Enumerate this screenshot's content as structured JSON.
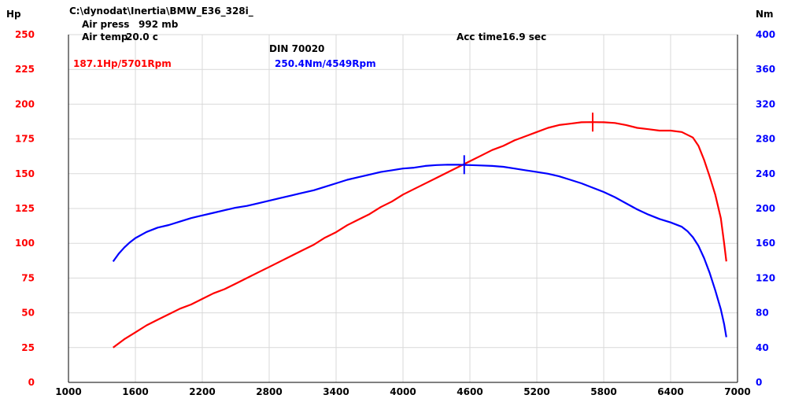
{
  "chart_data": {
    "type": "line",
    "file_path": "C:\\dynodat\\Inertia\\BMW_E36_328i_",
    "air_press_label": "Air press",
    "air_press_value": "992 mb",
    "air_temp_label": "Air temp",
    "air_temp_value": "20.0 c",
    "acc_time_label": "Acc time",
    "acc_time_value": "16.9 sec",
    "standard": "DIN 70020",
    "peak_power_label": "187.1Hp/5701Rpm",
    "peak_torque_label": "250.4Nm/4549Rpm",
    "y_left_unit": "Hp",
    "y_right_unit": "Nm",
    "xlim": [
      1000,
      7000
    ],
    "ylim_left": [
      0,
      250
    ],
    "ylim_right": [
      0,
      400
    ],
    "x_ticks": [
      1000,
      1600,
      2200,
      2800,
      3400,
      4000,
      4600,
      5200,
      5800,
      6400,
      7000
    ],
    "y_left_ticks": [
      0,
      25,
      50,
      75,
      100,
      125,
      150,
      175,
      200,
      225,
      250
    ],
    "y_right_ticks": [
      0,
      40,
      80,
      120,
      160,
      200,
      240,
      280,
      320,
      360,
      400
    ],
    "grid": true,
    "colors": {
      "power": "#ff0000",
      "torque": "#0000ff",
      "axis_left": "#ff0000",
      "axis_right": "#0000ff"
    },
    "series": [
      {
        "axis": "left",
        "color": "#ff0000",
        "peak": {
          "x": 5701,
          "y": 187.1
        },
        "x": [
          1400,
          1500,
          1600,
          1700,
          1800,
          1900,
          2000,
          2100,
          2200,
          2300,
          2400,
          2500,
          2600,
          2700,
          2800,
          2900,
          3000,
          3100,
          3200,
          3300,
          3400,
          3500,
          3600,
          3700,
          3800,
          3900,
          4000,
          4100,
          4200,
          4300,
          4400,
          4500,
          4600,
          4700,
          4800,
          4900,
          5000,
          5100,
          5200,
          5300,
          5400,
          5500,
          5600,
          5700,
          5800,
          5900,
          6000,
          6100,
          6200,
          6300,
          6400,
          6500,
          6600,
          6650,
          6700,
          6750,
          6800,
          6850,
          6880,
          6900
        ],
        "y": [
          25,
          31,
          36,
          41,
          45,
          49,
          53,
          56,
          60,
          64,
          67,
          71,
          75,
          79,
          83,
          87,
          91,
          95,
          99,
          104,
          108,
          113,
          117,
          121,
          126,
          130,
          135,
          139,
          143,
          147,
          151,
          155,
          159,
          163,
          167,
          170,
          174,
          177,
          180,
          183,
          185,
          186,
          187,
          187.1,
          187,
          186.5,
          185,
          183,
          182,
          181,
          181,
          180,
          176,
          170,
          160,
          148,
          135,
          118,
          100,
          87
        ]
      },
      {
        "axis": "right",
        "color": "#0000ff",
        "peak": {
          "x": 4549,
          "y": 250.4
        },
        "x": [
          1400,
          1450,
          1500,
          1550,
          1600,
          1700,
          1800,
          1900,
          2000,
          2100,
          2200,
          2300,
          2400,
          2500,
          2600,
          2700,
          2800,
          2900,
          3000,
          3100,
          3200,
          3300,
          3400,
          3500,
          3600,
          3700,
          3800,
          3900,
          4000,
          4100,
          4200,
          4300,
          4400,
          4500,
          4600,
          4700,
          4800,
          4900,
          5000,
          5100,
          5200,
          5300,
          5400,
          5500,
          5600,
          5700,
          5800,
          5900,
          6000,
          6100,
          6200,
          6300,
          6400,
          6500,
          6550,
          6600,
          6650,
          6700,
          6750,
          6800,
          6850,
          6880,
          6900
        ],
        "y": [
          139,
          148,
          155,
          161,
          166,
          173,
          178,
          181,
          185,
          189,
          192,
          195,
          198,
          201,
          203,
          206,
          209,
          212,
          215,
          218,
          221,
          225,
          229,
          233,
          236,
          239,
          242,
          244,
          246,
          247,
          249,
          250,
          250.4,
          250.3,
          250,
          249.5,
          249,
          248,
          246,
          244,
          242,
          240,
          237,
          233,
          229,
          224,
          219,
          213,
          206,
          199,
          193,
          188,
          184,
          179,
          174,
          167,
          157,
          143,
          126,
          106,
          84,
          67,
          52
        ]
      }
    ]
  }
}
